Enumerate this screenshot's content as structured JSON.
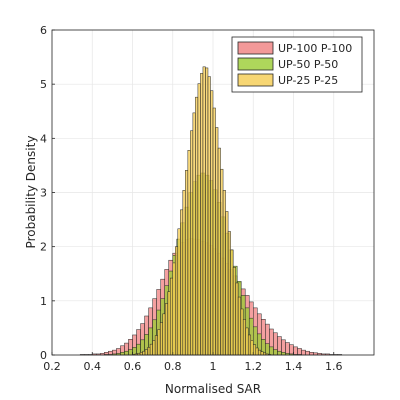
{
  "chart_data": {
    "type": "histogram",
    "xlabel": "Normalised SAR",
    "ylabel": "Probability Density",
    "xlim": [
      0.2,
      1.8
    ],
    "ylim": [
      0,
      6
    ],
    "xticks": [
      "0.2",
      "0.4",
      "0.6",
      "0.8",
      "1",
      "1.2",
      "1.4",
      "1.6"
    ],
    "yticks": [
      "0",
      "1",
      "2",
      "3",
      "4",
      "5",
      "6"
    ],
    "grid": true,
    "legend_position": "top-right",
    "series": [
      {
        "name": "UP-100 P-100",
        "color": "#f08080",
        "bin_width": 0.02,
        "bins": [
          [
            0.2,
            0
          ],
          [
            0.22,
            0
          ],
          [
            0.24,
            0
          ],
          [
            0.26,
            0
          ],
          [
            0.28,
            0
          ],
          [
            0.3,
            0
          ],
          [
            0.32,
            0
          ],
          [
            0.34,
            0.01
          ],
          [
            0.36,
            0.01
          ],
          [
            0.38,
            0.01
          ],
          [
            0.4,
            0.02
          ],
          [
            0.42,
            0.02
          ],
          [
            0.44,
            0.03
          ],
          [
            0.46,
            0.05
          ],
          [
            0.48,
            0.07
          ],
          [
            0.5,
            0.09
          ],
          [
            0.52,
            0.12
          ],
          [
            0.54,
            0.17
          ],
          [
            0.56,
            0.22
          ],
          [
            0.58,
            0.29
          ],
          [
            0.6,
            0.37
          ],
          [
            0.62,
            0.47
          ],
          [
            0.64,
            0.58
          ],
          [
            0.66,
            0.72
          ],
          [
            0.68,
            0.87
          ],
          [
            0.7,
            1.04
          ],
          [
            0.72,
            1.21
          ],
          [
            0.74,
            1.4
          ],
          [
            0.76,
            1.58
          ],
          [
            0.78,
            1.75
          ],
          [
            0.8,
            1.88
          ],
          [
            0.82,
            2.0
          ],
          [
            0.84,
            2.08
          ],
          [
            0.86,
            2.13
          ],
          [
            0.88,
            2.15
          ],
          [
            0.9,
            2.14
          ],
          [
            0.92,
            2.13
          ],
          [
            0.94,
            2.1
          ],
          [
            0.96,
            2.07
          ],
          [
            0.98,
            2.02
          ],
          [
            1.0,
            1.96
          ],
          [
            1.02,
            1.88
          ],
          [
            1.04,
            1.79
          ],
          [
            1.06,
            1.69
          ],
          [
            1.08,
            1.58
          ],
          [
            1.1,
            1.46
          ],
          [
            1.12,
            1.34
          ],
          [
            1.14,
            1.22
          ],
          [
            1.16,
            1.1
          ],
          [
            1.18,
            0.98
          ],
          [
            1.2,
            0.87
          ],
          [
            1.22,
            0.76
          ],
          [
            1.24,
            0.66
          ],
          [
            1.26,
            0.57
          ],
          [
            1.28,
            0.48
          ],
          [
            1.3,
            0.41
          ],
          [
            1.32,
            0.34
          ],
          [
            1.34,
            0.28
          ],
          [
            1.36,
            0.23
          ],
          [
            1.38,
            0.19
          ],
          [
            1.4,
            0.15
          ],
          [
            1.42,
            0.12
          ],
          [
            1.44,
            0.09
          ],
          [
            1.46,
            0.07
          ],
          [
            1.48,
            0.05
          ],
          [
            1.5,
            0.04
          ],
          [
            1.52,
            0.03
          ],
          [
            1.54,
            0.02
          ],
          [
            1.56,
            0.02
          ],
          [
            1.58,
            0.01
          ],
          [
            1.6,
            0.01
          ],
          [
            1.62,
            0.01
          ],
          [
            1.64,
            0
          ],
          [
            1.66,
            0
          ],
          [
            1.68,
            0
          ],
          [
            1.7,
            0
          ]
        ]
      },
      {
        "name": "UP-50 P-50",
        "color": "#9acd32",
        "bin_width": 0.02,
        "bins": [
          [
            0.46,
            0.01
          ],
          [
            0.48,
            0.01
          ],
          [
            0.5,
            0.02
          ],
          [
            0.52,
            0.03
          ],
          [
            0.54,
            0.05
          ],
          [
            0.56,
            0.07
          ],
          [
            0.58,
            0.1
          ],
          [
            0.6,
            0.14
          ],
          [
            0.62,
            0.2
          ],
          [
            0.64,
            0.28
          ],
          [
            0.66,
            0.38
          ],
          [
            0.68,
            0.5
          ],
          [
            0.7,
            0.65
          ],
          [
            0.72,
            0.83
          ],
          [
            0.74,
            1.04
          ],
          [
            0.76,
            1.28
          ],
          [
            0.78,
            1.55
          ],
          [
            0.8,
            1.84
          ],
          [
            0.82,
            2.14
          ],
          [
            0.84,
            2.44
          ],
          [
            0.86,
            2.73
          ],
          [
            0.88,
            3.0
          ],
          [
            0.9,
            3.2
          ],
          [
            0.92,
            3.32
          ],
          [
            0.94,
            3.36
          ],
          [
            0.96,
            3.32
          ],
          [
            0.98,
            3.22
          ],
          [
            1.0,
            3.05
          ],
          [
            1.02,
            2.82
          ],
          [
            1.04,
            2.55
          ],
          [
            1.06,
            2.25
          ],
          [
            1.08,
            1.94
          ],
          [
            1.1,
            1.64
          ],
          [
            1.12,
            1.36
          ],
          [
            1.14,
            1.1
          ],
          [
            1.16,
            0.87
          ],
          [
            1.18,
            0.68
          ],
          [
            1.2,
            0.52
          ],
          [
            1.22,
            0.39
          ],
          [
            1.24,
            0.29
          ],
          [
            1.26,
            0.21
          ],
          [
            1.28,
            0.15
          ],
          [
            1.3,
            0.1
          ],
          [
            1.32,
            0.07
          ],
          [
            1.34,
            0.05
          ],
          [
            1.36,
            0.03
          ],
          [
            1.38,
            0.02
          ],
          [
            1.4,
            0.01
          ],
          [
            1.42,
            0.01
          ]
        ]
      },
      {
        "name": "UP-25 P-25",
        "color": "#f5cc50",
        "bin_width": 0.0125,
        "bins": [
          [
            0.6,
            0.01
          ],
          [
            0.6125,
            0.02
          ],
          [
            0.625,
            0.03
          ],
          [
            0.6375,
            0.05
          ],
          [
            0.65,
            0.07
          ],
          [
            0.6625,
            0.1
          ],
          [
            0.675,
            0.14
          ],
          [
            0.6875,
            0.2
          ],
          [
            0.7,
            0.27
          ],
          [
            0.7125,
            0.36
          ],
          [
            0.725,
            0.47
          ],
          [
            0.7375,
            0.6
          ],
          [
            0.75,
            0.76
          ],
          [
            0.7625,
            0.95
          ],
          [
            0.775,
            1.17
          ],
          [
            0.7875,
            1.42
          ],
          [
            0.8,
            1.7
          ],
          [
            0.8125,
            2.0
          ],
          [
            0.825,
            2.33
          ],
          [
            0.8375,
            2.68
          ],
          [
            0.85,
            3.04
          ],
          [
            0.8625,
            3.41
          ],
          [
            0.875,
            3.78
          ],
          [
            0.8875,
            4.14
          ],
          [
            0.9,
            4.47
          ],
          [
            0.9125,
            4.76
          ],
          [
            0.925,
            5.01
          ],
          [
            0.9375,
            5.2
          ],
          [
            0.95,
            5.32
          ],
          [
            0.9625,
            5.3
          ],
          [
            0.975,
            5.14
          ],
          [
            0.9875,
            4.88
          ],
          [
            1.0,
            4.56
          ],
          [
            1.0125,
            4.2
          ],
          [
            1.025,
            3.82
          ],
          [
            1.0375,
            3.43
          ],
          [
            1.05,
            3.04
          ],
          [
            1.0625,
            2.65
          ],
          [
            1.075,
            2.28
          ],
          [
            1.0875,
            1.94
          ],
          [
            1.1,
            1.62
          ],
          [
            1.1125,
            1.33
          ],
          [
            1.125,
            1.07
          ],
          [
            1.1375,
            0.85
          ],
          [
            1.15,
            0.66
          ],
          [
            1.1625,
            0.5
          ],
          [
            1.175,
            0.37
          ],
          [
            1.1875,
            0.27
          ],
          [
            1.2,
            0.19
          ],
          [
            1.2125,
            0.13
          ],
          [
            1.225,
            0.09
          ],
          [
            1.2375,
            0.06
          ],
          [
            1.25,
            0.04
          ],
          [
            1.2625,
            0.02
          ],
          [
            1.275,
            0.01
          ]
        ]
      }
    ]
  }
}
